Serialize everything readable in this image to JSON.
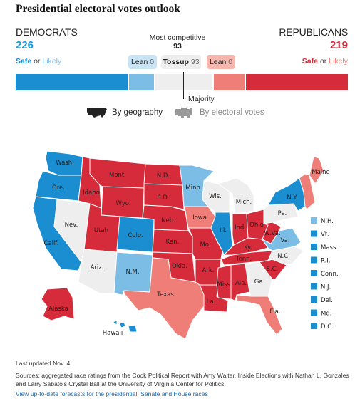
{
  "header": {
    "title": "Presidential electoral votes outlook"
  },
  "democrats": {
    "label": "DEMOCRATS",
    "votes": "226",
    "safe": "Safe",
    "or": "or",
    "likely": "Likely"
  },
  "republicans": {
    "label": "REPUBLICANS",
    "votes": "219",
    "safe": "Safe",
    "or": "or",
    "likely": "Likely"
  },
  "competitive": {
    "label": "Most competitive",
    "votes": "93"
  },
  "pills": {
    "lean_d": {
      "label": "Lean",
      "value": "0"
    },
    "tossup": {
      "label": "Tossup",
      "value": "93"
    },
    "lean_r": {
      "label": "Lean",
      "value": "0"
    }
  },
  "majority_label": "Majority",
  "toggles": {
    "geography": "By geography",
    "electoral": "By electoral votes"
  },
  "colors": {
    "safe_d": "#1a8ed0",
    "likely_d": "#7cbde6",
    "tossup": "#eeeeee",
    "likely_r": "#f07e78",
    "safe_r": "#d52b3a"
  },
  "bar_ev": {
    "safe_d": 185,
    "likely_d": 41,
    "tossup": 93,
    "likely_r": 51,
    "safe_r": 168,
    "total": 538
  },
  "states": [
    {
      "label": "Wash.",
      "rating": "safe_d"
    },
    {
      "label": "Ore.",
      "rating": "safe_d"
    },
    {
      "label": "Calif.",
      "rating": "safe_d"
    },
    {
      "label": "Nev.",
      "rating": "tossup"
    },
    {
      "label": "Idaho",
      "rating": "safe_r"
    },
    {
      "label": "Mont.",
      "rating": "safe_r"
    },
    {
      "label": "Wyo.",
      "rating": "safe_r"
    },
    {
      "label": "Utah",
      "rating": "safe_r"
    },
    {
      "label": "Ariz.",
      "rating": "tossup"
    },
    {
      "label": "Colo.",
      "rating": "safe_d"
    },
    {
      "label": "N.M.",
      "rating": "likely_d"
    },
    {
      "label": "N.D.",
      "rating": "safe_r"
    },
    {
      "label": "S.D.",
      "rating": "safe_r"
    },
    {
      "label": "Neb.",
      "rating": "safe_r"
    },
    {
      "label": "Kan.",
      "rating": "safe_r"
    },
    {
      "label": "Okla.",
      "rating": "safe_r"
    },
    {
      "label": "Texas",
      "rating": "likely_r"
    },
    {
      "label": "Minn.",
      "rating": "likely_d"
    },
    {
      "label": "Iowa",
      "rating": "likely_r"
    },
    {
      "label": "Mo.",
      "rating": "safe_r"
    },
    {
      "label": "Ark.",
      "rating": "safe_r"
    },
    {
      "label": "La.",
      "rating": "safe_r"
    },
    {
      "label": "Wis.",
      "rating": "tossup"
    },
    {
      "label": "Ill.",
      "rating": "safe_d"
    },
    {
      "label": "Mich.",
      "rating": "tossup"
    },
    {
      "label": "Ind.",
      "rating": "safe_r"
    },
    {
      "label": "Ohio",
      "rating": "safe_r"
    },
    {
      "label": "Ky.",
      "rating": "safe_r"
    },
    {
      "label": "Tenn.",
      "rating": "safe_r"
    },
    {
      "label": "Miss.",
      "rating": "safe_r"
    },
    {
      "label": "Ala.",
      "rating": "safe_r"
    },
    {
      "label": "Ga.",
      "rating": "tossup"
    },
    {
      "label": "Fla.",
      "rating": "likely_r"
    },
    {
      "label": "S.C.",
      "rating": "safe_r"
    },
    {
      "label": "N.C.",
      "rating": "tossup"
    },
    {
      "label": "Va.",
      "rating": "likely_d"
    },
    {
      "label": "W.Va.",
      "rating": "safe_r"
    },
    {
      "label": "Pa.",
      "rating": "tossup"
    },
    {
      "label": "N.Y.",
      "rating": "safe_d"
    },
    {
      "label": "Maine",
      "rating": "likely_r"
    },
    {
      "label": "Alaska",
      "rating": "safe_r"
    },
    {
      "label": "Hawaii",
      "rating": "safe_d"
    }
  ],
  "small_states": [
    {
      "label": "N.H.",
      "rating": "likely_d"
    },
    {
      "label": "Vt.",
      "rating": "safe_d"
    },
    {
      "label": "Mass.",
      "rating": "safe_d"
    },
    {
      "label": "R.I.",
      "rating": "safe_d"
    },
    {
      "label": "Conn.",
      "rating": "safe_d"
    },
    {
      "label": "N.J.",
      "rating": "safe_d"
    },
    {
      "label": "Del.",
      "rating": "safe_d"
    },
    {
      "label": "Md.",
      "rating": "safe_d"
    },
    {
      "label": "D.C.",
      "rating": "safe_d"
    }
  ],
  "footer": {
    "updated": "Last updated Nov. 4",
    "sources": "Sources: aggregated race ratings from the Cook Political Report with Amy Walter, Inside Elections with Nathan L. Gonzales and Larry Sabato's Crystal Ball at the University of Virginia Center for Politics",
    "link": "View up-to-date forecasts for the presidential, Senate and House races"
  }
}
